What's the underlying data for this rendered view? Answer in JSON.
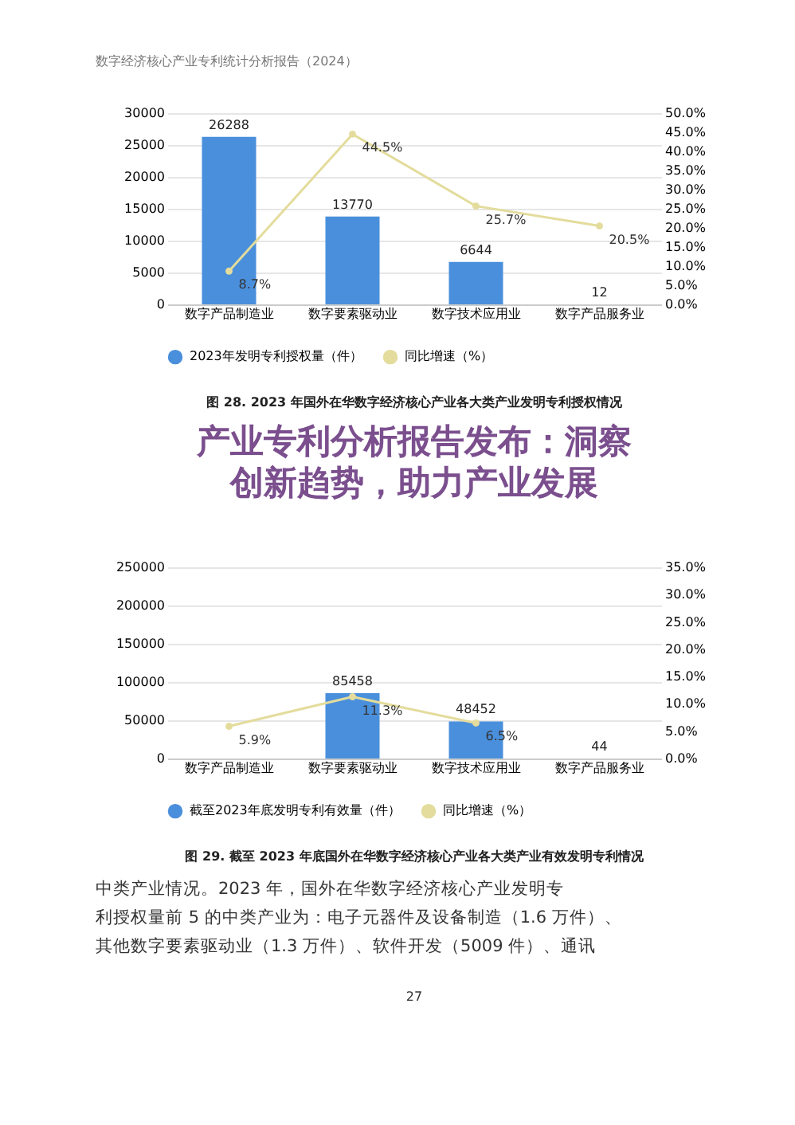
{
  "chart_data": [
    {
      "type": "bar",
      "title": "图 28. 2023 年国外在华数字经济核心产业各大类产业发明专利授权情况",
      "categories": [
        "数字产品制造业",
        "数字要素驱动业",
        "数字技术应用业",
        "数字产品服务业"
      ],
      "series": [
        {
          "name": "2023年发明专利授权量（件）",
          "color": "#4a8fdc",
          "values": [
            26288,
            13770,
            6644,
            12
          ]
        },
        {
          "name": "同比增速（%）",
          "type": "line",
          "axis": "y2",
          "color": "#e3dc9c",
          "values": [
            8.7,
            44.5,
            25.7,
            20.5
          ],
          "value_labels": [
            "8.7%",
            "44.5%",
            "25.7%",
            "20.5%"
          ]
        }
      ],
      "ylim": [
        0,
        30000
      ],
      "yticks": [
        0,
        5000,
        10000,
        15000,
        20000,
        25000,
        30000
      ],
      "y2lim": [
        0,
        50
      ],
      "y2ticks": [
        {
          "value": 0,
          "label": "0.0%"
        },
        {
          "value": 5,
          "label": "5.0%"
        },
        {
          "value": 10,
          "label": "10.0%"
        },
        {
          "value": 15,
          "label": "15.0%"
        },
        {
          "value": 20,
          "label": "20.0%"
        },
        {
          "value": 25,
          "label": "25.0%"
        },
        {
          "value": 30,
          "label": "30.0%"
        },
        {
          "value": 35,
          "label": "35.0%"
        },
        {
          "value": 40,
          "label": "40.0%"
        },
        {
          "value": 45,
          "label": "45.0%"
        },
        {
          "value": 50,
          "label": "50.0%"
        }
      ],
      "data_labels": true,
      "grid": "y",
      "legend": "bottom",
      "marker": "circle",
      "annotations": [
        "数字经济核心产业专利统计分析报告（2024）"
      ]
    },
    {
      "type": "bar",
      "title": "图 29. 截至 2023 年底国外在华数字经济核心产业各大类产业有效发明专利情况",
      "categories": [
        "数字产品制造业",
        "数字要素驱动业",
        "数字技术应用业",
        "数字产品服务业"
      ],
      "series": [
        {
          "name": "截至2023年底发明专利有效量（件）",
          "color": "#4a8fdc",
          "values": [
            null,
            85458,
            48452,
            44
          ]
        },
        {
          "name": "同比增速（%）",
          "type": "line",
          "axis": "y2",
          "color": "#e3dc9c",
          "values": [
            5.9,
            11.3,
            6.5,
            null
          ],
          "value_labels": [
            "5.9%",
            "11.3%",
            "6.5%",
            null
          ]
        }
      ],
      "ylim": [
        0,
        250000
      ],
      "yticks": [
        0,
        50000,
        100000,
        150000,
        200000,
        250000
      ],
      "y2lim": [
        0,
        35
      ],
      "y2ticks": [
        {
          "value": 0,
          "label": "0.0%"
        },
        {
          "value": 5,
          "label": "5.0%"
        },
        {
          "value": 10,
          "label": "10.0%"
        },
        {
          "value": 15,
          "label": "15.0%"
        },
        {
          "value": 20,
          "label": "20.0%"
        },
        {
          "value": 25,
          "label": "25.0%"
        },
        {
          "value": 30,
          "label": "30.0%"
        },
        {
          "value": 35,
          "label": "35.0%"
        }
      ],
      "data_labels": true,
      "grid": "y",
      "legend": "bottom",
      "marker": "circle",
      "annotations": [
        "产业专利分析报告发布：洞察",
        "创新趋势，助力产业发展",
        "中类产业情况。2023 年，国外在华数字经济核心产业发明专",
        "利授权量前 5 的中类产业为：电子元器件及设备制造（1.6 万件）、",
        "其他数字要素驱动业（1.3 万件）、软件开发（5009 件）、通讯",
        "27"
      ]
    }
  ]
}
